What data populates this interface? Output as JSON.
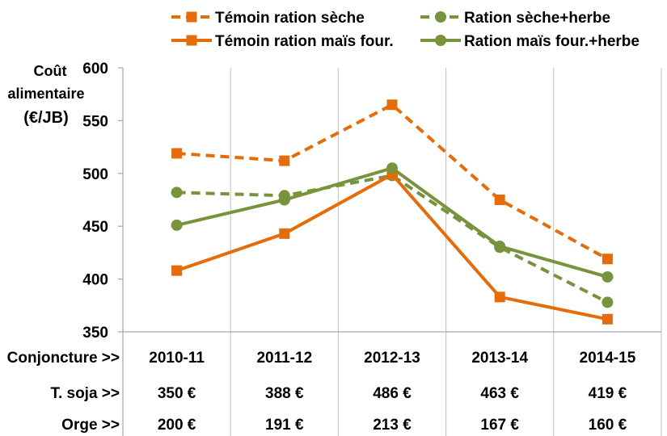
{
  "chart_data": {
    "type": "line",
    "ylabel_lines": [
      "Coût",
      "alimentaire",
      "(€/JB)"
    ],
    "ylim": [
      350,
      600
    ],
    "yticks": [
      350,
      400,
      450,
      500,
      550,
      600
    ],
    "categories": [
      "2010-11",
      "2011-12",
      "2012-13",
      "2013-14",
      "2014-15"
    ],
    "grid": "vertical",
    "legend_position": "top",
    "series": [
      {
        "name": "Témoin ration sèche",
        "color": "#E46C0A",
        "style": "dashed",
        "marker": "square",
        "values": [
          519,
          512,
          565,
          475,
          419
        ]
      },
      {
        "name": "Ration sèche+herbe",
        "color": "#77933C",
        "style": "dashed",
        "marker": "circle",
        "values": [
          482,
          479,
          498,
          430,
          378
        ]
      },
      {
        "name": "Témoin ration maïs four.",
        "color": "#E46C0A",
        "style": "solid",
        "marker": "square",
        "values": [
          408,
          443,
          499,
          383,
          362
        ]
      },
      {
        "name": "Ration maïs four.+herbe",
        "color": "#77933C",
        "style": "solid",
        "marker": "circle",
        "values": [
          451,
          475,
          505,
          431,
          402
        ]
      }
    ],
    "table_rows": [
      {
        "label": "Conjoncture >>",
        "values": [
          "2010-11",
          "2011-12",
          "2012-13",
          "2013-14",
          "2014-15"
        ]
      },
      {
        "label": "T. soja >>",
        "values": [
          "350 €",
          "388 €",
          "486 €",
          "463 €",
          "419 €"
        ]
      },
      {
        "label": "Orge >>",
        "values": [
          "200 €",
          "191 €",
          "213 €",
          "167 €",
          "160 €"
        ]
      }
    ]
  }
}
